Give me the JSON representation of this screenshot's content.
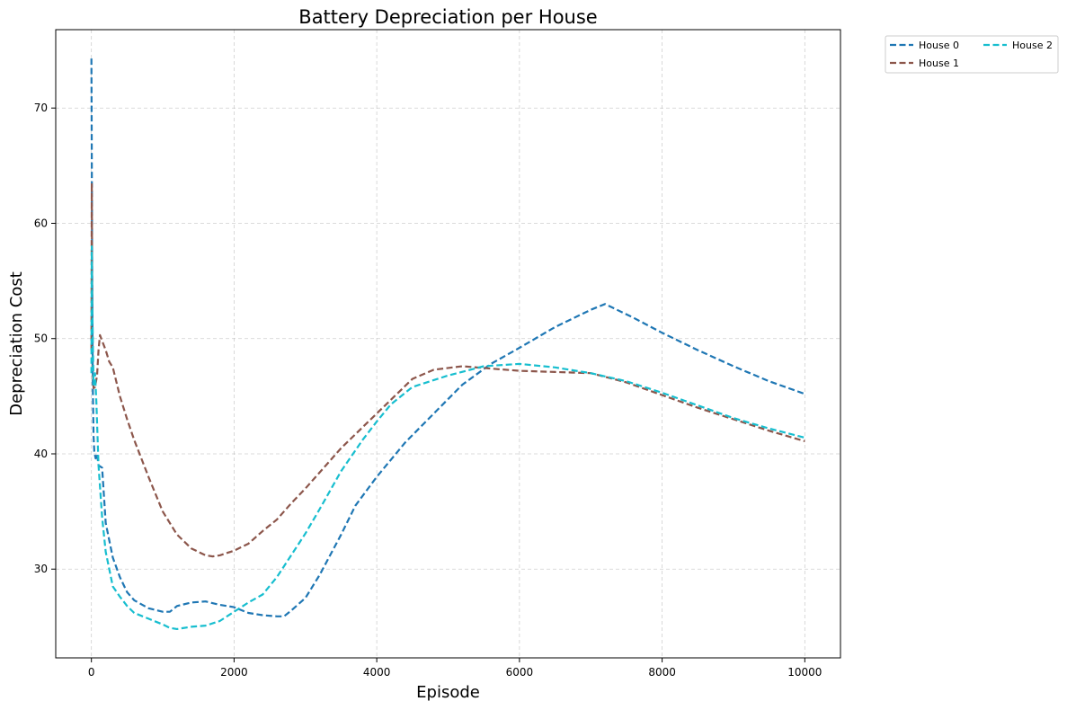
{
  "chart_data": {
    "type": "line",
    "title": "Battery Depreciation per House",
    "xlabel": "Episode",
    "ylabel": "Depreciation Cost",
    "xlim": [
      -500,
      10500
    ],
    "ylim": [
      22.3,
      76.8
    ],
    "xticks": [
      0,
      2000,
      4000,
      6000,
      8000,
      10000
    ],
    "yticks": [
      30,
      40,
      50,
      60,
      70
    ],
    "grid": true,
    "legend_position": "outside-top-right",
    "series": [
      {
        "name": "House 0",
        "color": "#1f77b4",
        "line_style": "dashed",
        "x": [
          0,
          5,
          10,
          20,
          30,
          40,
          60,
          80,
          100,
          150,
          200,
          300,
          400,
          500,
          600,
          800,
          1000,
          1100,
          1200,
          1400,
          1600,
          1800,
          2000,
          2200,
          2400,
          2600,
          2700,
          2800,
          3000,
          3200,
          3500,
          3700,
          4000,
          4400,
          4800,
          5200,
          5600,
          6000,
          6500,
          7000,
          7200,
          7600,
          8000,
          8500,
          9000,
          9500,
          10000
        ],
        "y": [
          74.3,
          66.0,
          56.0,
          45.5,
          41.5,
          40.2,
          39.6,
          40.0,
          39.0,
          38.8,
          34.0,
          31.0,
          29.3,
          28.0,
          27.3,
          26.6,
          26.3,
          26.3,
          26.8,
          27.1,
          27.2,
          26.9,
          26.7,
          26.2,
          26.0,
          25.9,
          25.9,
          26.4,
          27.5,
          29.5,
          33.0,
          35.5,
          38.0,
          41.0,
          43.5,
          46.0,
          47.8,
          49.2,
          51.0,
          52.5,
          53.0,
          51.8,
          50.5,
          49.0,
          47.6,
          46.3,
          45.2
        ]
      },
      {
        "name": "House 1",
        "color": "#8c564b",
        "line_style": "dashed",
        "x": [
          0,
          5,
          10,
          20,
          30,
          50,
          80,
          100,
          120,
          150,
          200,
          250,
          300,
          400,
          500,
          600,
          800,
          1000,
          1200,
          1400,
          1600,
          1700,
          1800,
          2000,
          2200,
          2400,
          2600,
          2800,
          3000,
          3500,
          4000,
          4500,
          4800,
          5200,
          5600,
          6000,
          6500,
          7000,
          7500,
          8000,
          8500,
          9000,
          9500,
          10000
        ],
        "y": [
          49.0,
          63.5,
          55.5,
          47.0,
          45.7,
          45.8,
          46.8,
          49.0,
          50.3,
          49.8,
          49.0,
          48.0,
          47.5,
          45.0,
          43.0,
          41.2,
          38.0,
          35.0,
          33.0,
          31.8,
          31.2,
          31.1,
          31.2,
          31.6,
          32.2,
          33.3,
          34.3,
          35.7,
          37.0,
          40.5,
          43.5,
          46.5,
          47.3,
          47.6,
          47.4,
          47.2,
          47.1,
          47.0,
          46.2,
          45.1,
          44.0,
          43.0,
          42.0,
          41.1
        ]
      },
      {
        "name": "House 2",
        "color": "#17becf",
        "line_style": "dashed",
        "x": [
          0,
          5,
          10,
          20,
          30,
          50,
          70,
          100,
          150,
          200,
          300,
          400,
          500,
          600,
          800,
          1000,
          1100,
          1200,
          1400,
          1600,
          1800,
          2000,
          2200,
          2400,
          2600,
          2800,
          3000,
          3200,
          3500,
          3800,
          4000,
          4200,
          4500,
          5000,
          5500,
          6000,
          6500,
          7000,
          7500,
          8000,
          8500,
          9000,
          9500,
          10000
        ],
        "y": [
          47.0,
          58.0,
          54.0,
          49.5,
          46.0,
          47.0,
          44.5,
          39.0,
          34.5,
          31.5,
          28.5,
          27.6,
          26.8,
          26.2,
          25.7,
          25.2,
          24.9,
          24.8,
          25.0,
          25.1,
          25.5,
          26.3,
          27.1,
          27.8,
          29.3,
          31.2,
          33.1,
          35.2,
          38.5,
          41.2,
          42.8,
          44.3,
          45.8,
          46.8,
          47.6,
          47.8,
          47.5,
          47.0,
          46.3,
          45.3,
          44.2,
          43.1,
          42.2,
          41.4
        ]
      }
    ]
  }
}
